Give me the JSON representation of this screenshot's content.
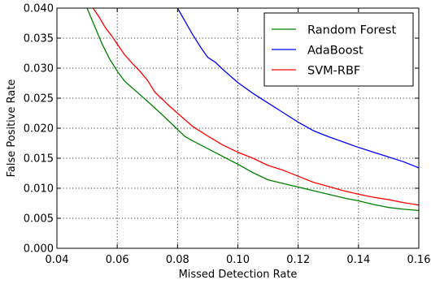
{
  "chart_data": {
    "type": "line",
    "xlabel": "Missed Detection Rate",
    "ylabel": "False Positive Rate",
    "xlim": [
      0.04,
      0.16
    ],
    "ylim": [
      0.0,
      0.04
    ],
    "xticks": [
      "0.04",
      "0.06",
      "0.08",
      "0.10",
      "0.12",
      "0.14",
      "0.16"
    ],
    "yticks": [
      "0.000",
      "0.005",
      "0.010",
      "0.015",
      "0.020",
      "0.025",
      "0.030",
      "0.035",
      "0.040"
    ],
    "grid": true,
    "legend_position": "top-right",
    "series": [
      {
        "name": "Random Forest",
        "color": "#008000",
        "x": [
          0.05,
          0.0525,
          0.055,
          0.0575,
          0.06,
          0.0625,
          0.065,
          0.07,
          0.075,
          0.08,
          0.0825,
          0.085,
          0.09,
          0.095,
          0.1,
          0.105,
          0.11,
          0.115,
          0.12,
          0.125,
          0.13,
          0.135,
          0.14,
          0.145,
          0.15,
          0.155,
          0.16
        ],
        "y": [
          0.04,
          0.037,
          0.034,
          0.0315,
          0.0295,
          0.0278,
          0.0267,
          0.0245,
          0.0222,
          0.0198,
          0.0186,
          0.0179,
          0.0166,
          0.0153,
          0.014,
          0.0126,
          0.0114,
          0.0108,
          0.0102,
          0.0096,
          0.009,
          0.0084,
          0.0079,
          0.0073,
          0.0068,
          0.0065,
          0.0063
        ]
      },
      {
        "name": "AdaBoost",
        "color": "#0000ff",
        "x": [
          0.08,
          0.0825,
          0.085,
          0.0875,
          0.09,
          0.0925,
          0.095,
          0.0975,
          0.1,
          0.105,
          0.11,
          0.115,
          0.12,
          0.125,
          0.13,
          0.135,
          0.14,
          0.145,
          0.15,
          0.155,
          0.16
        ],
        "y": [
          0.04,
          0.0378,
          0.0356,
          0.0336,
          0.0318,
          0.031,
          0.0298,
          0.0287,
          0.0276,
          0.0258,
          0.0242,
          0.0226,
          0.021,
          0.0196,
          0.0186,
          0.0177,
          0.0168,
          0.016,
          0.0152,
          0.0144,
          0.0134
        ]
      },
      {
        "name": "SVM-RBF",
        "color": "#ff0000",
        "x": [
          0.052,
          0.054,
          0.056,
          0.058,
          0.06,
          0.0625,
          0.065,
          0.0675,
          0.07,
          0.0725,
          0.075,
          0.0775,
          0.08,
          0.085,
          0.09,
          0.095,
          0.1,
          0.105,
          0.11,
          0.115,
          0.12,
          0.125,
          0.13,
          0.135,
          0.14,
          0.145,
          0.15,
          0.155,
          0.16
        ],
        "y": [
          0.04,
          0.0385,
          0.0368,
          0.0355,
          0.034,
          0.0322,
          0.0308,
          0.0295,
          0.028,
          0.026,
          0.0248,
          0.0236,
          0.0225,
          0.0203,
          0.0187,
          0.0172,
          0.016,
          0.015,
          0.0138,
          0.013,
          0.012,
          0.011,
          0.0103,
          0.0096,
          0.009,
          0.0085,
          0.0081,
          0.0076,
          0.0072
        ]
      }
    ]
  }
}
